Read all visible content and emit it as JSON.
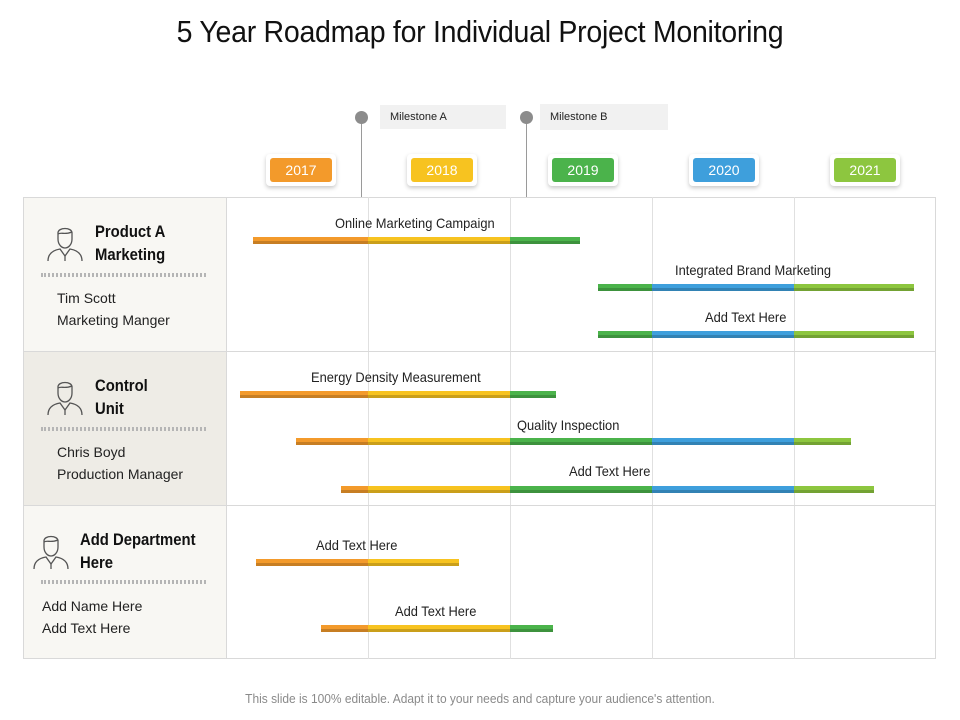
{
  "title": "5 Year Roadmap for Individual Project Monitoring",
  "footer": "This slide is 100% editable. Adapt it to your needs and capture your audience's attention.",
  "milestones": [
    {
      "label": "Milestone  A"
    },
    {
      "label": "Milestone B"
    }
  ],
  "years": [
    {
      "label": "2017",
      "color": "#f39a2b"
    },
    {
      "label": "2018",
      "color": "#f7c320"
    },
    {
      "label": "2019",
      "color": "#4bb34b"
    },
    {
      "label": "2020",
      "color": "#3e9fdc"
    },
    {
      "label": "2021",
      "color": "#8dc63f"
    }
  ],
  "rows": [
    {
      "dept_line1": "Product A",
      "dept_line2": "Marketing",
      "person_name": "Tim Scott",
      "person_role": "Marketing Manger",
      "tasks": [
        {
          "label": "Online Marketing Campaign",
          "start": "2017-ish",
          "end": "mid 2019"
        },
        {
          "label": "Integrated Brand Marketing",
          "start": "late 2019",
          "end": "2021"
        },
        {
          "label": "Add Text Here",
          "start": "late 2019",
          "end": "2021"
        }
      ]
    },
    {
      "dept_line1": "Control",
      "dept_line2": "Unit",
      "person_name": "Chris Boyd",
      "person_role": "Production Manager",
      "tasks": [
        {
          "label": "Energy Density Measurement",
          "start": "2017",
          "end": "2019"
        },
        {
          "label": "Quality Inspection",
          "start": "2017",
          "end": "2021"
        },
        {
          "label": "Add Text Here",
          "start": "2017",
          "end": "2021"
        }
      ]
    },
    {
      "dept_line1": "Add Department",
      "dept_line2": "Here",
      "person_name": "Add Name Here",
      "person_role": "Add Text Here",
      "tasks": [
        {
          "label": "Add Text Here",
          "start": "2017",
          "end": "2018"
        },
        {
          "label": "Add Text Here",
          "start": "2017",
          "end": "2019"
        }
      ]
    }
  ]
}
